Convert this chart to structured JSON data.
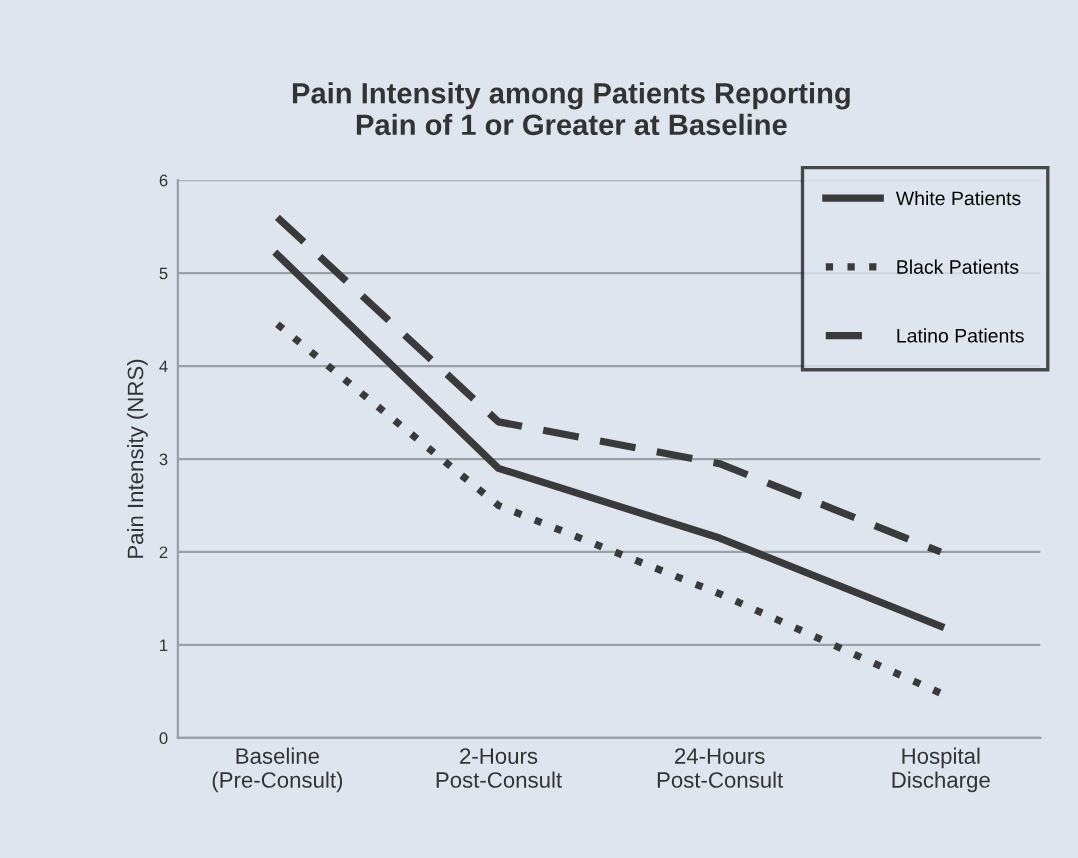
{
  "chart_data": {
    "type": "line",
    "title": "Pain Intensity among Patients Reporting\nPain of 1 or Greater at Baseline",
    "ylabel": "Pain Intensity (NRS)",
    "categories": [
      "Baseline\n(Pre-Consult)",
      "2-Hours\nPost-Consult",
      "24-Hours\nPost-Consult",
      "Hospital\nDischarge"
    ],
    "series": [
      {
        "name": "White Patients",
        "color": "#3a3a3a",
        "line_style": "solid",
        "values": [
          5.2,
          2.9,
          2.15,
          1.2
        ]
      },
      {
        "name": "Black Patients",
        "color": "#3a3a3a",
        "line_style": "dotted",
        "values": [
          4.45,
          2.5,
          1.55,
          0.48
        ]
      },
      {
        "name": "Latino Patients",
        "color": "#3a3a3a",
        "line_style": "dashed",
        "values": [
          5.6,
          3.4,
          2.95,
          2.0
        ]
      }
    ],
    "ylim": [
      0,
      6
    ],
    "yticks": [
      0,
      1,
      2,
      3,
      4,
      5,
      6
    ],
    "grid": "y",
    "legend": "top right",
    "marker": "none"
  }
}
